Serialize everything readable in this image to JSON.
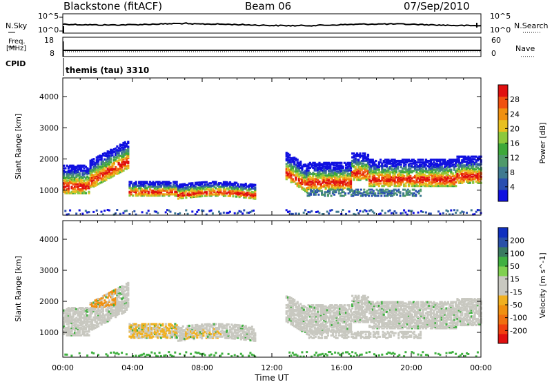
{
  "header": {
    "radar": "Blackstone (fitACF)",
    "beam": "Beam 06",
    "date": "07/Sep/2010"
  },
  "nsky_panel": {
    "left_label": "N.Sky",
    "left_ticks": [
      "10^5",
      "10^0"
    ],
    "right_label": "N.Search",
    "right_ticks": [
      "10^5",
      "10^0"
    ]
  },
  "freq_panel": {
    "left_label_1": "Freq.",
    "left_label_2": "[MHz]",
    "left_ticks": [
      "18",
      "8"
    ],
    "right_label": "Nave",
    "right_ticks": [
      "60",
      "0"
    ]
  },
  "cpid": {
    "label": "CPID",
    "value": "themis (tau) 3310"
  },
  "chart_data": [
    {
      "type": "heatmap",
      "name": "power",
      "ylabel": "Slant Range [km]",
      "yticks": [
        "1000",
        "2000",
        "3000",
        "4000"
      ],
      "ylim": [
        200,
        4600
      ],
      "xlim": [
        0,
        24
      ],
      "colorbar": {
        "label": "Power [dB]",
        "ticks": [
          "4",
          "8",
          "12",
          "16",
          "20",
          "24",
          "28"
        ],
        "colors": [
          "#1010e0",
          "#2a4fb0",
          "#3f7a90",
          "#4f9a6a",
          "#3da83a",
          "#8cc83c",
          "#e8c020",
          "#f09010",
          "#f05010",
          "#e01010"
        ]
      },
      "scatter_regions": [
        {
          "t0": 0.0,
          "t1": 3.7,
          "r0": 1300,
          "r1": 2300,
          "level": 0.55
        },
        {
          "t0": 3.7,
          "t1": 6.5,
          "r0": 700,
          "r1": 1400,
          "level": 0.4
        },
        {
          "t0": 6.5,
          "t1": 11.0,
          "r0": 700,
          "r1": 1200,
          "level": 0.55
        },
        {
          "t0": 12.7,
          "t1": 24.0,
          "r0": 1300,
          "r1": 2400,
          "level": 0.5
        },
        {
          "t0": 14.0,
          "t1": 20.5,
          "r0": 850,
          "r1": 1100,
          "level": 0.15
        },
        {
          "t0": 0.0,
          "t1": 24.0,
          "r0": 200,
          "r1": 400,
          "level": 0.05
        }
      ]
    },
    {
      "type": "heatmap",
      "name": "velocity",
      "ylabel": "Slant Range [km]",
      "yticks": [
        "1000",
        "2000",
        "3000",
        "4000"
      ],
      "ylim": [
        200,
        4600
      ],
      "xlim": [
        0,
        24
      ],
      "xticks": [
        "00:00",
        "04:00",
        "08:00",
        "12:00",
        "16:00",
        "20:00",
        "00:00"
      ],
      "xlabel": "Time UT",
      "colorbar": {
        "label": "Velocity [m s^-1]",
        "ticks": [
          "200",
          "100",
          "50",
          "15",
          "-15",
          "-50",
          "-100",
          "-200"
        ],
        "colors": [
          "#1030c0",
          "#2a50a8",
          "#3a7a60",
          "#40b040",
          "#80d050",
          "#c8c8c0",
          "#c8c8c0",
          "#f0b020",
          "#f09010",
          "#f07010",
          "#f04010",
          "#e01010"
        ]
      }
    }
  ]
}
